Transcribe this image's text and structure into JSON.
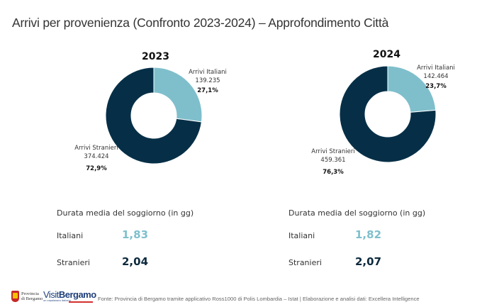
{
  "title": "Arrivi per provenienza (Confronto 2023-2024) – Approfondimento Città",
  "colors": {
    "italiani": "#7fbfcc",
    "stranieri": "#062f47",
    "italiani_value": "#7fbfcc",
    "stranieri_value": "#0d2a3d"
  },
  "chart_data": [
    {
      "type": "pie",
      "subtype": "donut",
      "title": "2023",
      "categories": [
        "Arrivi Italiani",
        "Arrivi Stranieri"
      ],
      "values": [
        139235,
        374424
      ],
      "value_labels": [
        "139.235",
        "374.424"
      ],
      "percent_labels": [
        "27,1%",
        "72,9%"
      ],
      "percents": [
        27.1,
        72.9
      ]
    },
    {
      "type": "pie",
      "subtype": "donut",
      "title": "2024",
      "categories": [
        "Arrivi Italiani",
        "Arrivi Stranieri"
      ],
      "values": [
        142464,
        459361
      ],
      "value_labels": [
        "142.464",
        "459.361"
      ],
      "percent_labels": [
        "23,7%",
        "76,3%"
      ],
      "percents": [
        23.7,
        76.3
      ]
    }
  ],
  "stay": [
    {
      "title": "Durata media del soggiorno (in gg)",
      "rows": [
        {
          "label": "Italiani",
          "value": "1,83"
        },
        {
          "label": "Stranieri",
          "value": "2,04"
        }
      ]
    },
    {
      "title": "Durata media del soggiorno (in gg)",
      "rows": [
        {
          "label": "Italiani",
          "value": "1,82"
        },
        {
          "label": "Stranieri",
          "value": "2,07"
        }
      ]
    }
  ],
  "footer": {
    "logo_provincia": [
      "Provincia",
      "di Bergamo"
    ],
    "logo_visit": [
      "Visit",
      "Bergamo"
    ],
    "logo_visit_sub": "un capolavoro italiano",
    "source": "Fonte: Provincia di Bergamo tramite applicativo Ross1000 di Polis Lombardia – Istat | Elaborazione e analisi dati: Excellera Intelligence"
  }
}
